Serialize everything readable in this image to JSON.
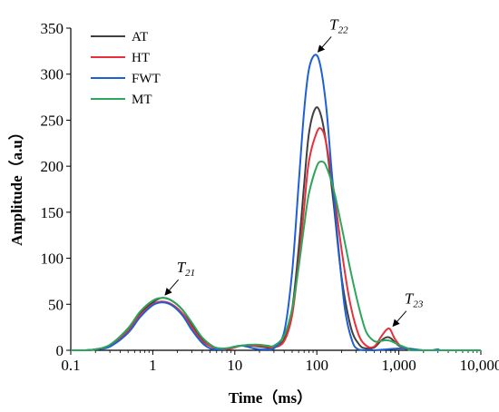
{
  "chart_data": {
    "type": "line",
    "xlabel": "Time（ms）",
    "ylabel": "Amplitude（a.u）",
    "x_scale": "log",
    "xlim": [
      0.1,
      10000
    ],
    "ylim": [
      0,
      350
    ],
    "x_ticks": [
      0.1,
      1,
      10,
      100,
      1000,
      10000
    ],
    "x_tick_labels": [
      "0.1",
      "1",
      "10",
      "100",
      "1,000",
      "10,000"
    ],
    "y_ticks": [
      0,
      50,
      100,
      150,
      200,
      250,
      300,
      350
    ],
    "y_tick_labels": [
      "0",
      "50",
      "100",
      "150",
      "200",
      "250",
      "300",
      "350"
    ],
    "grid": false,
    "legend_position": "top-left",
    "series": [
      {
        "name": "AT",
        "color": "#404040",
        "points": [
          [
            0.1,
            0
          ],
          [
            0.15,
            0
          ],
          [
            0.2,
            1
          ],
          [
            0.3,
            5
          ],
          [
            0.5,
            22
          ],
          [
            0.7,
            40
          ],
          [
            1,
            52
          ],
          [
            1.3,
            57
          ],
          [
            1.7,
            54
          ],
          [
            2.3,
            44
          ],
          [
            3,
            28
          ],
          [
            4,
            12
          ],
          [
            5.5,
            3
          ],
          [
            7,
            1
          ],
          [
            9,
            3
          ],
          [
            12,
            5
          ],
          [
            15,
            5
          ],
          [
            20,
            4
          ],
          [
            25,
            3
          ],
          [
            30,
            3
          ],
          [
            40,
            12
          ],
          [
            50,
            45
          ],
          [
            60,
            110
          ],
          [
            70,
            180
          ],
          [
            80,
            235
          ],
          [
            95,
            262
          ],
          [
            110,
            258
          ],
          [
            130,
            225
          ],
          [
            160,
            160
          ],
          [
            200,
            80
          ],
          [
            260,
            25
          ],
          [
            330,
            6
          ],
          [
            400,
            2
          ],
          [
            500,
            3
          ],
          [
            600,
            10
          ],
          [
            700,
            14
          ],
          [
            800,
            13
          ],
          [
            1000,
            5
          ],
          [
            1300,
            1
          ],
          [
            1600,
            0
          ],
          [
            3000,
            0
          ],
          [
            10000,
            0
          ]
        ]
      },
      {
        "name": "HT",
        "color": "#e8303a",
        "points": [
          [
            0.1,
            0
          ],
          [
            0.15,
            0
          ],
          [
            0.2,
            1
          ],
          [
            0.3,
            5
          ],
          [
            0.5,
            21
          ],
          [
            0.7,
            38
          ],
          [
            1,
            50
          ],
          [
            1.3,
            53
          ],
          [
            1.7,
            50
          ],
          [
            2.3,
            40
          ],
          [
            3,
            25
          ],
          [
            4,
            10
          ],
          [
            5.5,
            3
          ],
          [
            7,
            1
          ],
          [
            9,
            2
          ],
          [
            12,
            5
          ],
          [
            15,
            5
          ],
          [
            20,
            5
          ],
          [
            25,
            4
          ],
          [
            30,
            3
          ],
          [
            40,
            10
          ],
          [
            50,
            38
          ],
          [
            60,
            95
          ],
          [
            70,
            155
          ],
          [
            80,
            205
          ],
          [
            100,
            237
          ],
          [
            115,
            240
          ],
          [
            130,
            225
          ],
          [
            160,
            175
          ],
          [
            200,
            110
          ],
          [
            250,
            55
          ],
          [
            320,
            18
          ],
          [
            400,
            5
          ],
          [
            500,
            4
          ],
          [
            600,
            14
          ],
          [
            700,
            22
          ],
          [
            780,
            23
          ],
          [
            900,
            12
          ],
          [
            1100,
            3
          ],
          [
            1400,
            1
          ],
          [
            2000,
            0
          ],
          [
            10000,
            0
          ]
        ]
      },
      {
        "name": "FWT",
        "color": "#1f5fd6",
        "points": [
          [
            0.1,
            0
          ],
          [
            0.15,
            0
          ],
          [
            0.2,
            1
          ],
          [
            0.3,
            4
          ],
          [
            0.5,
            19
          ],
          [
            0.7,
            36
          ],
          [
            1,
            49
          ],
          [
            1.3,
            52
          ],
          [
            1.7,
            49
          ],
          [
            2.3,
            38
          ],
          [
            3,
            22
          ],
          [
            4,
            8
          ],
          [
            5,
            2
          ],
          [
            6,
            1
          ],
          [
            8,
            2
          ],
          [
            10,
            4
          ],
          [
            12,
            5
          ],
          [
            14,
            4
          ],
          [
            17,
            2
          ],
          [
            20,
            1
          ],
          [
            25,
            1
          ],
          [
            30,
            2
          ],
          [
            40,
            20
          ],
          [
            50,
            85
          ],
          [
            60,
            180
          ],
          [
            70,
            260
          ],
          [
            80,
            305
          ],
          [
            95,
            321
          ],
          [
            110,
            310
          ],
          [
            130,
            265
          ],
          [
            150,
            200
          ],
          [
            180,
            120
          ],
          [
            220,
            45
          ],
          [
            270,
            10
          ],
          [
            320,
            1
          ],
          [
            400,
            0
          ],
          [
            500,
            0
          ],
          [
            700,
            1
          ],
          [
            1000,
            2
          ],
          [
            1300,
            2
          ],
          [
            1600,
            1
          ],
          [
            2000,
            0
          ],
          [
            2500,
            0
          ],
          [
            3000,
            1
          ],
          [
            3500,
            0
          ],
          [
            10000,
            0
          ]
        ]
      },
      {
        "name": "MT",
        "color": "#2ea55a",
        "points": [
          [
            0.1,
            0
          ],
          [
            0.15,
            0
          ],
          [
            0.2,
            1
          ],
          [
            0.3,
            6
          ],
          [
            0.5,
            24
          ],
          [
            0.7,
            42
          ],
          [
            1,
            54
          ],
          [
            1.3,
            57
          ],
          [
            1.7,
            54
          ],
          [
            2.3,
            44
          ],
          [
            3,
            30
          ],
          [
            4,
            14
          ],
          [
            5.5,
            4
          ],
          [
            7,
            2
          ],
          [
            9,
            3
          ],
          [
            12,
            5
          ],
          [
            15,
            6
          ],
          [
            20,
            6
          ],
          [
            25,
            5
          ],
          [
            30,
            5
          ],
          [
            40,
            16
          ],
          [
            50,
            45
          ],
          [
            60,
            90
          ],
          [
            70,
            135
          ],
          [
            80,
            170
          ],
          [
            100,
            200
          ],
          [
            115,
            205
          ],
          [
            130,
            200
          ],
          [
            160,
            175
          ],
          [
            200,
            135
          ],
          [
            260,
            85
          ],
          [
            330,
            45
          ],
          [
            400,
            20
          ],
          [
            500,
            10
          ],
          [
            600,
            10
          ],
          [
            700,
            11
          ],
          [
            800,
            10
          ],
          [
            1000,
            6
          ],
          [
            1300,
            2
          ],
          [
            1600,
            0
          ],
          [
            10000,
            0
          ]
        ]
      }
    ],
    "annotations": [
      {
        "label": "T",
        "sub": "21",
        "x": 1.3,
        "y": 57
      },
      {
        "label": "T",
        "sub": "22",
        "x": 95,
        "y": 321
      },
      {
        "label": "T",
        "sub": "23",
        "x": 780,
        "y": 23
      }
    ]
  }
}
